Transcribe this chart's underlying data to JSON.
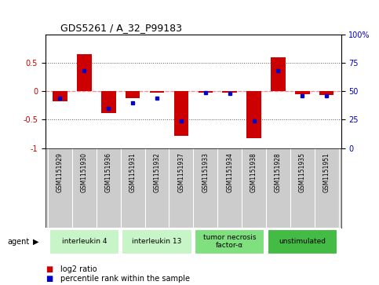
{
  "title": "GDS5261 / A_32_P99183",
  "samples": [
    "GSM1151929",
    "GSM1151930",
    "GSM1151936",
    "GSM1151931",
    "GSM1151932",
    "GSM1151937",
    "GSM1151933",
    "GSM1151934",
    "GSM1151938",
    "GSM1151928",
    "GSM1151935",
    "GSM1151951"
  ],
  "log2_ratio": [
    -0.18,
    0.65,
    -0.38,
    -0.12,
    -0.02,
    -0.78,
    -0.02,
    -0.03,
    -0.82,
    0.6,
    -0.05,
    -0.07
  ],
  "percentile_rank": [
    44,
    68,
    35,
    40,
    44,
    24,
    49,
    48,
    24,
    68,
    46,
    46
  ],
  "agents": [
    {
      "label": "interleukin 4",
      "start": 0,
      "end": 2,
      "color": "#c8f5c8"
    },
    {
      "label": "interleukin 13",
      "start": 3,
      "end": 5,
      "color": "#c8f5c8"
    },
    {
      "label": "tumor necrosis\nfactor-α",
      "start": 6,
      "end": 8,
      "color": "#80e080"
    },
    {
      "label": "unstimulated",
      "start": 9,
      "end": 11,
      "color": "#44bb44"
    }
  ],
  "ylim": [
    -1,
    1
  ],
  "yticks": [
    -1,
    -0.5,
    0,
    0.5
  ],
  "ytick_labels": [
    "-1",
    "-0.5",
    "0",
    "0.5"
  ],
  "y2ticks_mapped": [
    -1,
    -0.5,
    0,
    0.5,
    1
  ],
  "y2tick_labels": [
    "0",
    "25",
    "50",
    "75",
    "100%"
  ],
  "bar_color": "#cc0000",
  "dot_color": "#0000cc",
  "zero_line_color": "#ff8888",
  "dot_line_color": "#8888ff",
  "grid_color": "#555555",
  "bg_color": "#ffffff",
  "sample_box_color": "#cccccc",
  "legend_items": [
    {
      "label": "log2 ratio",
      "color": "#cc0000"
    },
    {
      "label": "percentile rank within the sample",
      "color": "#0000cc"
    }
  ],
  "bar_width": 0.6
}
